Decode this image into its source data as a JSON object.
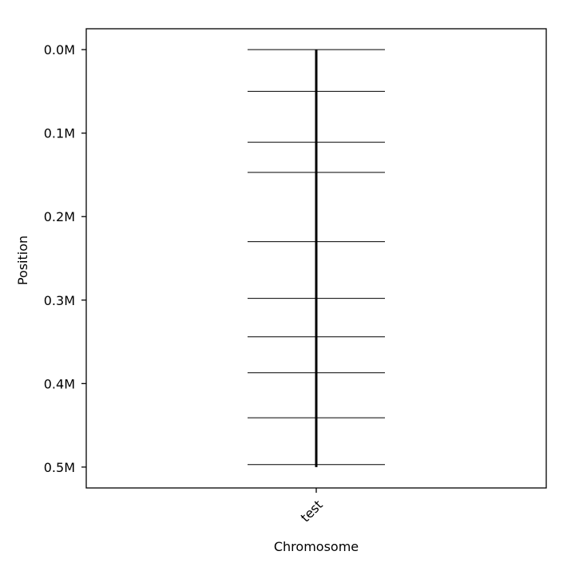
{
  "chart_data": {
    "type": "scatter",
    "title": "",
    "xlabel": "Chromosome",
    "ylabel": "Position",
    "categories": [
      "test"
    ],
    "chromosome": {
      "name": "test",
      "start": 0,
      "end": 500000
    },
    "markers": [
      {
        "chromosome": "test",
        "position": 0
      },
      {
        "chromosome": "test",
        "position": 50000
      },
      {
        "chromosome": "test",
        "position": 111000
      },
      {
        "chromosome": "test",
        "position": 147000
      },
      {
        "chromosome": "test",
        "position": 230000
      },
      {
        "chromosome": "test",
        "position": 298000
      },
      {
        "chromosome": "test",
        "position": 344000
      },
      {
        "chromosome": "test",
        "position": 387000
      },
      {
        "chromosome": "test",
        "position": 441000
      },
      {
        "chromosome": "test",
        "position": 497000
      }
    ],
    "ylim": [
      525000,
      -25000
    ],
    "y_inverted": true,
    "y_ticks": [
      0,
      100000,
      200000,
      300000,
      400000,
      500000
    ],
    "y_tick_labels": [
      "0.0M",
      "0.1M",
      "0.2M",
      "0.3M",
      "0.4M",
      "0.5M"
    ],
    "x_tick_rotation_deg": 45,
    "grid": false,
    "legend": "none",
    "colors": {
      "chromosome": "#000000",
      "marker": "#000000",
      "frame": "#000000"
    }
  }
}
